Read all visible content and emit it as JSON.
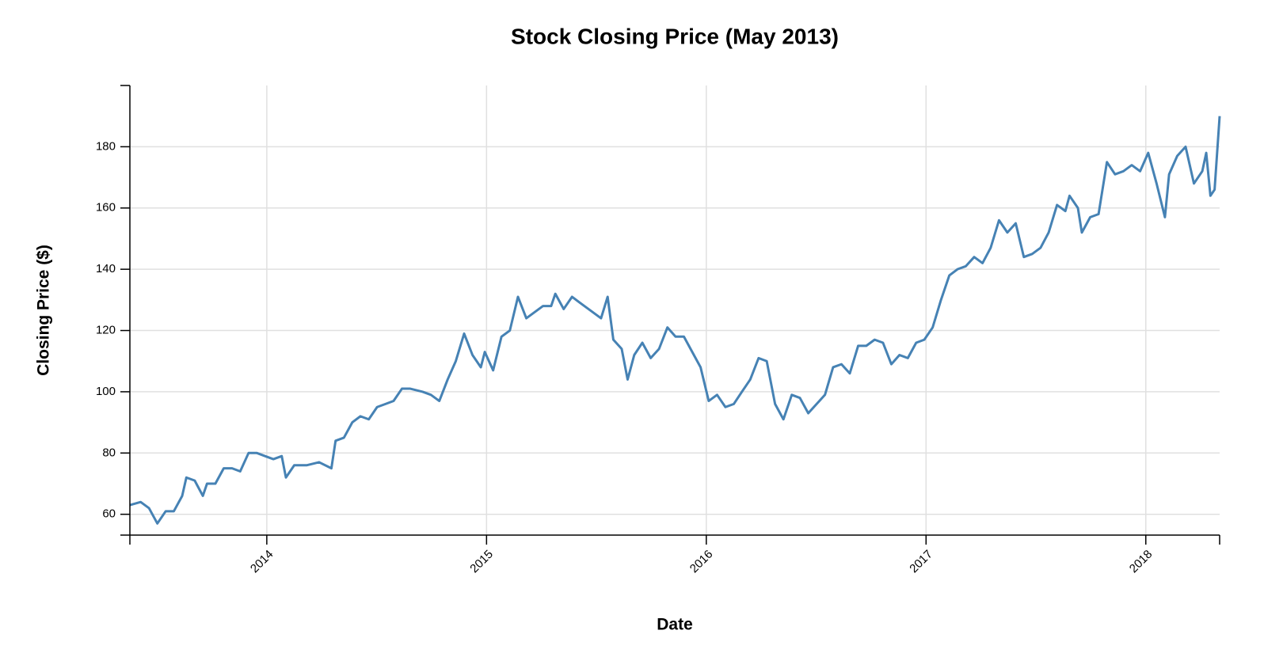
{
  "chart_data": {
    "type": "line",
    "title": "Stock Closing Price (May 2013)",
    "x_label": "Date",
    "y_label": "Closing Price ($)",
    "x": [
      2013.377,
      2013.426,
      2013.464,
      2013.502,
      2013.54,
      2013.577,
      2013.615,
      2013.634,
      2013.672,
      2013.709,
      2013.728,
      2013.766,
      2013.804,
      2013.842,
      2013.879,
      2013.917,
      2013.955,
      2013.992,
      2014.03,
      2014.068,
      2014.087,
      2014.125,
      2014.181,
      2014.238,
      2014.294,
      2014.313,
      2014.351,
      2014.389,
      2014.426,
      2014.464,
      2014.502,
      2014.54,
      2014.577,
      2014.615,
      2014.653,
      2014.709,
      2014.747,
      2014.785,
      2014.823,
      2014.86,
      2014.898,
      2014.936,
      2014.974,
      2014.992,
      2015.03,
      2015.068,
      2015.106,
      2015.143,
      2015.181,
      2015.219,
      2015.257,
      2015.294,
      2015.313,
      2015.351,
      2015.389,
      2015.426,
      2015.464,
      2015.502,
      2015.521,
      2015.551,
      2015.577,
      2015.615,
      2015.642,
      2015.672,
      2015.709,
      2015.747,
      2015.785,
      2015.823,
      2015.86,
      2015.898,
      2015.936,
      2015.974,
      2016.011,
      2016.049,
      2016.087,
      2016.125,
      2016.162,
      2016.2,
      2016.238,
      2016.275,
      2016.313,
      2016.351,
      2016.389,
      2016.426,
      2016.464,
      2016.502,
      2016.54,
      2016.577,
      2016.615,
      2016.653,
      2016.691,
      2016.728,
      2016.766,
      2016.804,
      2016.842,
      2016.879,
      2016.917,
      2016.955,
      2016.992,
      2017.03,
      2017.068,
      2017.106,
      2017.143,
      2017.181,
      2017.219,
      2017.257,
      2017.294,
      2017.332,
      2017.37,
      2017.408,
      2017.445,
      2017.483,
      2017.521,
      2017.558,
      2017.596,
      2017.634,
      2017.653,
      2017.691,
      2017.709,
      2017.747,
      2017.785,
      2017.823,
      2017.86,
      2017.898,
      2017.936,
      2017.974,
      2018.011,
      2018.049,
      2018.087,
      2018.106,
      2018.143,
      2018.181,
      2018.219,
      2018.257,
      2018.275,
      2018.294,
      2018.313,
      2018.336
    ],
    "series": [
      {
        "name": "Closing Price",
        "color": "#4682b4",
        "values": [
          63,
          64,
          62,
          57,
          61,
          61,
          66,
          72,
          71,
          66,
          70,
          70,
          75,
          75,
          74,
          80,
          80,
          79,
          78,
          79,
          72,
          76,
          76,
          77,
          75,
          84,
          85,
          90,
          92,
          91,
          95,
          96,
          97,
          101,
          101,
          100,
          99,
          97,
          104,
          110,
          119,
          112,
          108,
          113,
          107,
          118,
          120,
          131,
          124,
          126,
          128,
          128,
          132,
          127,
          131,
          129,
          127,
          125,
          124,
          131,
          117,
          114,
          104,
          112,
          116,
          111,
          114,
          121,
          118,
          118,
          113,
          108,
          97,
          99,
          95,
          96,
          100,
          104,
          111,
          110,
          96,
          91,
          99,
          98,
          93,
          96,
          99,
          108,
          109,
          106,
          115,
          115,
          117,
          116,
          109,
          112,
          111,
          116,
          117,
          121,
          130,
          138,
          140,
          141,
          144,
          142,
          147,
          156,
          152,
          155,
          144,
          145,
          147,
          152,
          161,
          159,
          164,
          160,
          152,
          157,
          158,
          175,
          171,
          172,
          174,
          172,
          178,
          168,
          157,
          171,
          177,
          180,
          168,
          172,
          178,
          164,
          166,
          190
        ]
      }
    ],
    "xlim": [
      2013.377,
      2018.336
    ],
    "xticks": [
      2014,
      2015,
      2016,
      2017,
      2018
    ],
    "ylim": [
      53.2,
      200
    ],
    "yticks": [
      60,
      80,
      100,
      120,
      140,
      160,
      180
    ],
    "grid": true
  }
}
